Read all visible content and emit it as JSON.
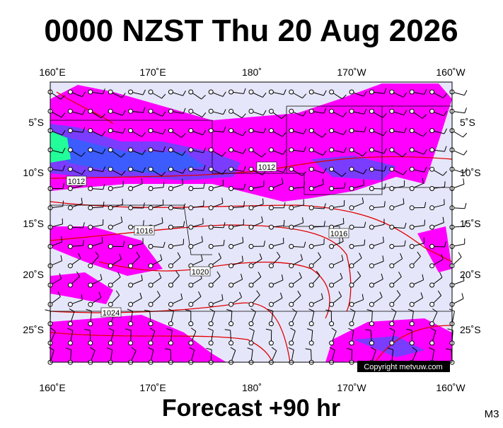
{
  "header": {
    "title": "0000 NZST Thu 20 Aug 2026"
  },
  "map": {
    "lon_labels": [
      "160˚E",
      "170˚E",
      "180˚",
      "170˚W",
      "160˚W"
    ],
    "lat_labels": [
      "5˚S",
      "10˚S",
      "15˚S",
      "20˚S",
      "25˚S"
    ],
    "isobar_labels": [
      "1012",
      "1012",
      "1016",
      "1016",
      "1020",
      "1024"
    ],
    "copyright": "Copyright metvuw.com"
  },
  "footer": {
    "caption": "Forecast +90 hr",
    "code": "M3"
  }
}
